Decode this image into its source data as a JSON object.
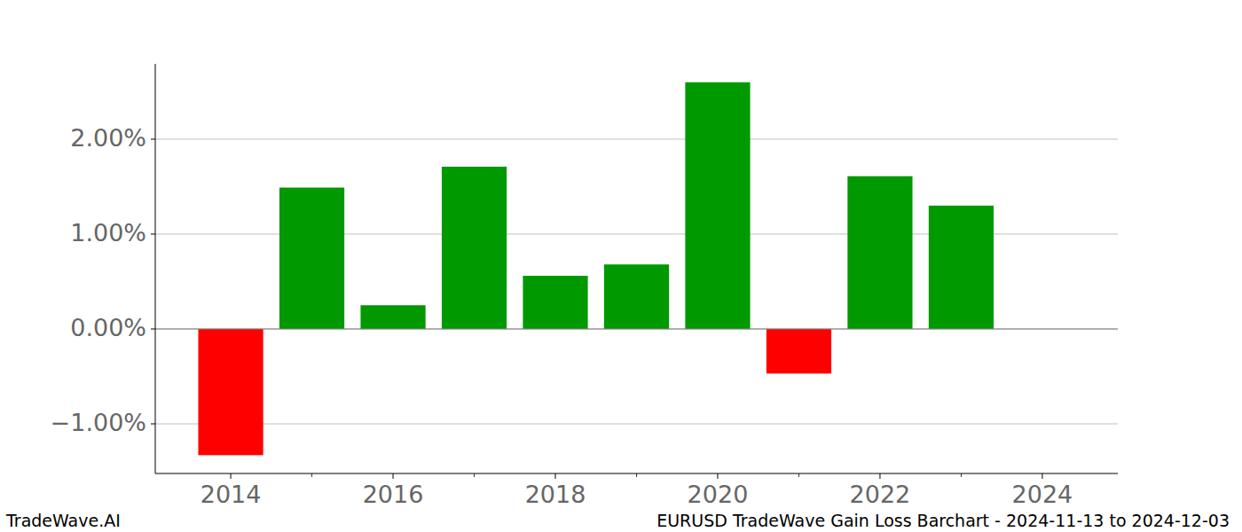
{
  "chart_data": {
    "type": "bar",
    "title": "EURUSD TradeWave Gain Loss Barchart - 2024-11-13 to 2024-12-03",
    "annotations": [
      "TradeWave.AI"
    ],
    "x": [
      2014,
      2015,
      2016,
      2017,
      2018,
      2019,
      2020,
      2021,
      2022,
      2023
    ],
    "values": [
      -1.33,
      1.49,
      0.25,
      1.71,
      0.56,
      0.68,
      2.6,
      -0.47,
      1.61,
      1.3
    ],
    "colors": [
      "#ff0000",
      "#009900",
      "#009900",
      "#009900",
      "#009900",
      "#009900",
      "#009900",
      "#ff0000",
      "#009900",
      "#009900"
    ],
    "xlim": [
      2013.07,
      2024.93
    ],
    "xticks": [
      2014,
      2016,
      2018,
      2020,
      2022,
      2024
    ],
    "ylim": [
      -1.523,
      2.794
    ],
    "yticks": [
      {
        "value": -1,
        "label": "−1.00%"
      },
      {
        "value": 0,
        "label": "0.00%"
      },
      {
        "value": 1,
        "label": "1.00%"
      },
      {
        "value": 2,
        "label": "2.00%"
      }
    ],
    "grid": true
  }
}
